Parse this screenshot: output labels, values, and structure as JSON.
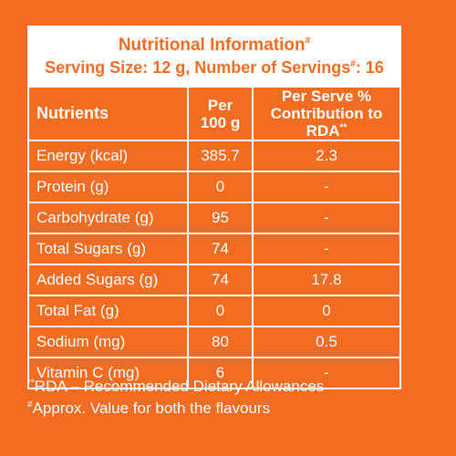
{
  "header": {
    "title": "Nutritional Information",
    "title_mark": "#",
    "serving_label": "Serving Size: 12 g, Number of Servings",
    "serving_mark": "#",
    "serving_value": ": 16"
  },
  "columns": {
    "nutrients": "Nutrients",
    "per_100g_line1": "Per",
    "per_100g_line2": "100 g",
    "rda_line1": "Per Serve %",
    "rda_line2": "Contribution to RDA",
    "rda_mark": "**"
  },
  "rows": [
    {
      "name": "Energy (kcal)",
      "per100": "385.7",
      "rda": "2.3"
    },
    {
      "name": "Protein (g)",
      "per100": "0",
      "rda": "-"
    },
    {
      "name": "Carbohydrate (g)",
      "per100": "95",
      "rda": "-"
    },
    {
      "name": "Total Sugars (g)",
      "per100": "74",
      "rda": "-"
    },
    {
      "name": "Added Sugars (g)",
      "per100": "74",
      "rda": "17.8"
    },
    {
      "name": "Total Fat (g)",
      "per100": "0",
      "rda": "0"
    },
    {
      "name": "Sodium (mg)",
      "per100": "80",
      "rda": "0.5"
    },
    {
      "name": "Vitamin C (mg)",
      "per100": "6",
      "rda": "-"
    }
  ],
  "footnotes": {
    "rda_mark": "**",
    "rda_text": "RDA – Recommended Dietary Allowances",
    "approx_mark": "#",
    "approx_text": "Approx. Value for both the flavours"
  },
  "colors": {
    "background": "#f26d21",
    "foreground": "#ffffff"
  }
}
